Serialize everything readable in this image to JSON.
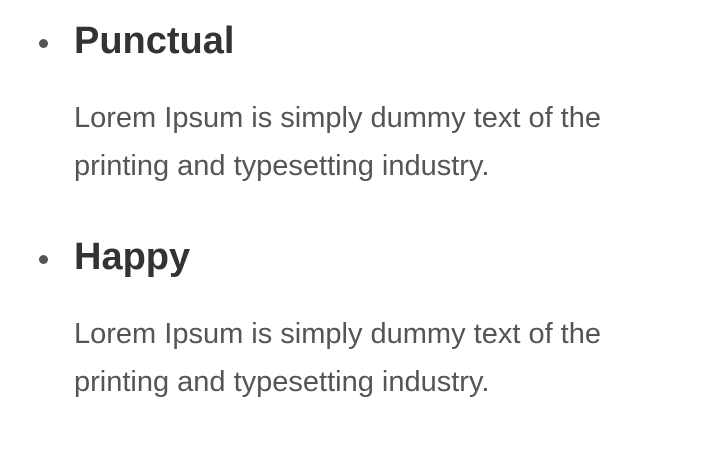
{
  "features": [
    {
      "title": "Punctual",
      "description": "Lorem Ipsum is simply dummy text of the printing and typesetting industry."
    },
    {
      "title": "Happy",
      "description": "Lorem Ipsum is simply dummy text of the printing and typesetting industry."
    }
  ]
}
